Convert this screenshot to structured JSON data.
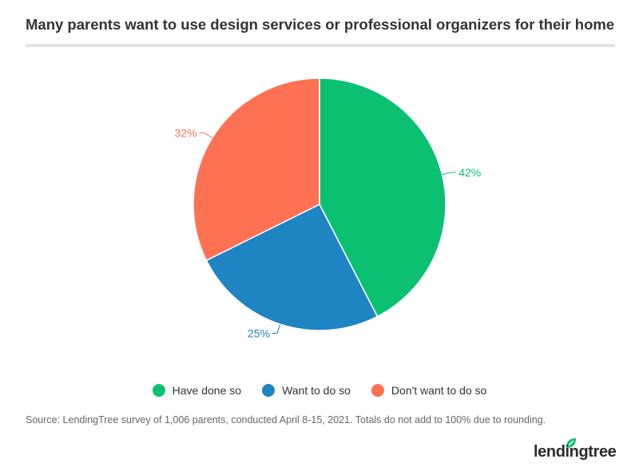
{
  "title": "Many parents want to use design services or professional organizers for their home",
  "chart_data": {
    "type": "pie",
    "slices": [
      {
        "name": "Have done so",
        "value": 42,
        "label": "42%",
        "color": "#0bc171"
      },
      {
        "name": "Want to do so",
        "value": 25,
        "label": "25%",
        "color": "#1f84c2"
      },
      {
        "name": "Don't want to do so",
        "value": 32,
        "label": "32%",
        "color": "#fe7152"
      }
    ],
    "legend_position": "bottom"
  },
  "source": "Source: LendingTree survey of 1,006 parents, conducted April 8-15, 2021. Totals do not add to 100% due to rounding.",
  "logo": {
    "text": "lendingtree",
    "icon": "leaf-icon",
    "color": "#0bc171"
  }
}
